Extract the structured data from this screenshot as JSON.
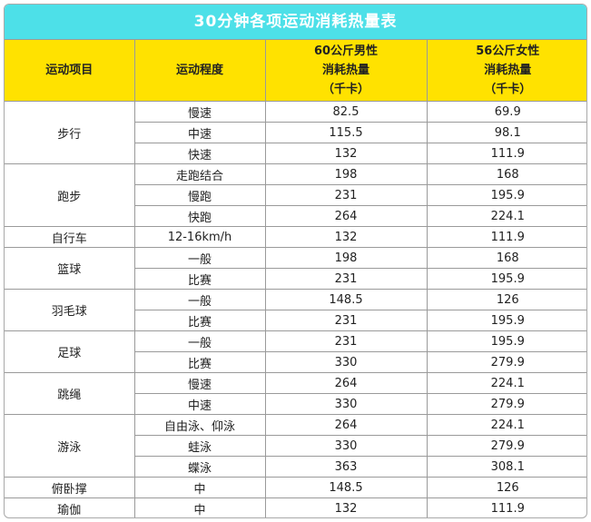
{
  "title": "30分钟各项运动消耗热量表",
  "headers": {
    "col1": "运动项目",
    "col2": "运动程度",
    "col3": [
      "60公斤男性",
      "消耗热量",
      "（千卡）"
    ],
    "col4": [
      "56公斤女性",
      "消耗热量",
      "（千卡）"
    ]
  },
  "rows": [
    {
      "sport": "步行",
      "level": "慢速",
      "male": "82.5",
      "female": "69.9"
    },
    {
      "sport": "",
      "level": "中速",
      "male": "115.5",
      "female": "98.1"
    },
    {
      "sport": "",
      "level": "快速",
      "male": "132",
      "female": "111.9"
    },
    {
      "sport": "跑步",
      "level": "走跑结合",
      "male": "198",
      "female": "168"
    },
    {
      "sport": "",
      "level": "慢跑",
      "male": "231",
      "female": "195.9"
    },
    {
      "sport": "",
      "level": "快跑",
      "male": "264",
      "female": "224.1"
    },
    {
      "sport": "自行车",
      "level": "12-16km/h",
      "male": "132",
      "female": "111.9"
    },
    {
      "sport": "篮球",
      "level": "一般",
      "male": "198",
      "female": "168"
    },
    {
      "sport": "",
      "level": "比赛",
      "male": "231",
      "female": "195.9"
    },
    {
      "sport": "羽毛球",
      "level": "一般",
      "male": "148.5",
      "female": "126"
    },
    {
      "sport": "",
      "level": "比赛",
      "male": "231",
      "female": "195.9"
    },
    {
      "sport": "足球",
      "level": "一般",
      "male": "231",
      "female": "195.9"
    },
    {
      "sport": "",
      "level": "比赛",
      "male": "330",
      "female": "279.9"
    },
    {
      "sport": "跳绳",
      "level": "慢速",
      "male": "264",
      "female": "224.1"
    },
    {
      "sport": "",
      "level": "中速",
      "male": "330",
      "female": "279.9"
    },
    {
      "sport": "游泳",
      "level": "自由泳、仰泳",
      "male": "264",
      "female": "224.1"
    },
    {
      "sport": "",
      "level": "蛙泳",
      "male": "330",
      "female": "279.9"
    },
    {
      "sport": "",
      "level": "蝶泳",
      "male": "363",
      "female": "308.1"
    },
    {
      "sport": "俯卧撑",
      "level": "中",
      "male": "148.5",
      "female": "126"
    },
    {
      "sport": "瑜伽",
      "level": "中",
      "male": "132",
      "female": "111.9"
    }
  ],
  "colors": {
    "title_bg": "#4de0e8",
    "header_bg": "#ffe200",
    "border": "#9a9a9a"
  }
}
